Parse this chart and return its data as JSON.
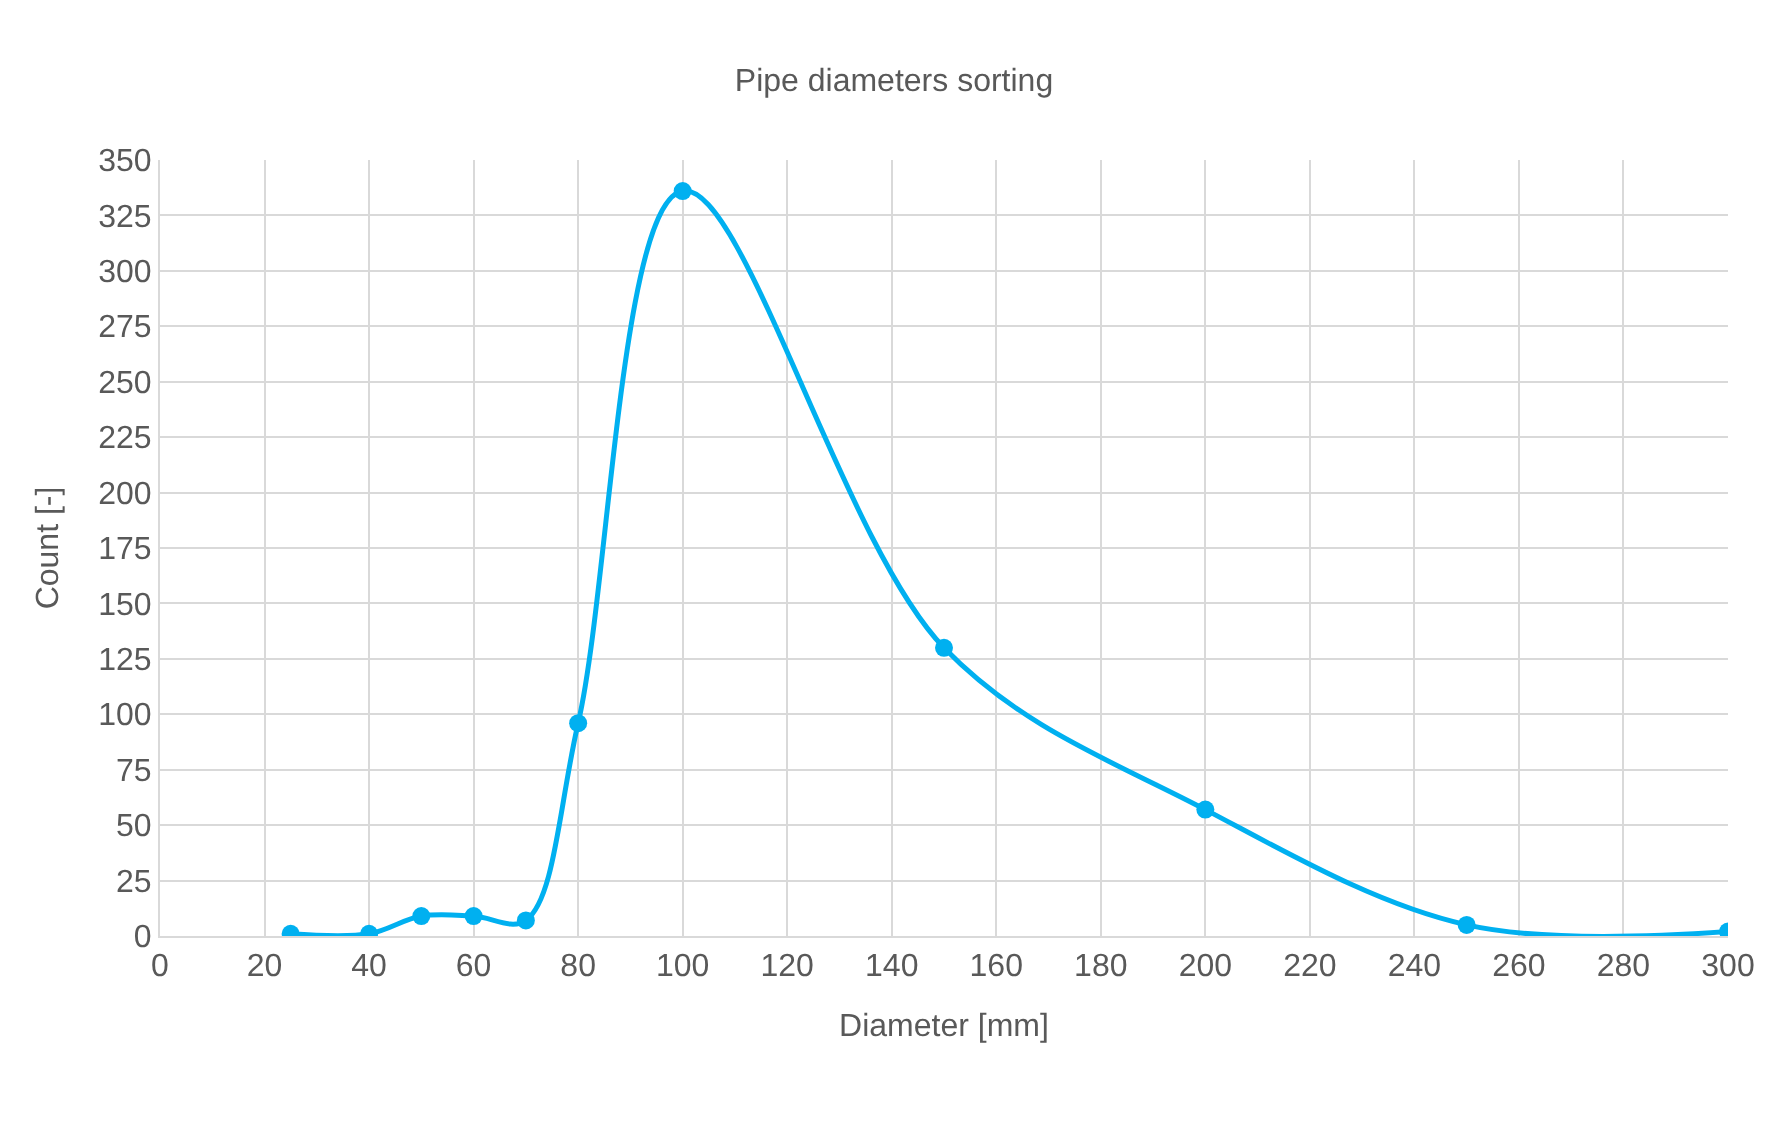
{
  "chart_data": {
    "type": "line",
    "title": "Pipe diameters sorting",
    "xlabel": "Diameter [mm]",
    "ylabel": "Count [-]",
    "x": [
      25,
      40,
      50,
      60,
      70,
      80,
      100,
      150,
      200,
      250,
      300
    ],
    "series": [
      {
        "color": "#00b0f0",
        "values": [
          1,
          1,
          9,
          9,
          7,
          96,
          336,
          130,
          57,
          5,
          2
        ]
      }
    ],
    "xlim": [
      0,
      300
    ],
    "xticks": [
      0,
      20,
      40,
      60,
      80,
      100,
      120,
      140,
      160,
      180,
      200,
      220,
      240,
      260,
      280,
      300
    ],
    "ylim": [
      0,
      350
    ],
    "yticks": [
      0,
      25,
      50,
      75,
      100,
      125,
      150,
      175,
      200,
      225,
      250,
      275,
      300,
      325,
      350
    ],
    "grid": true,
    "marker": "circle",
    "line_style": "solid"
  }
}
